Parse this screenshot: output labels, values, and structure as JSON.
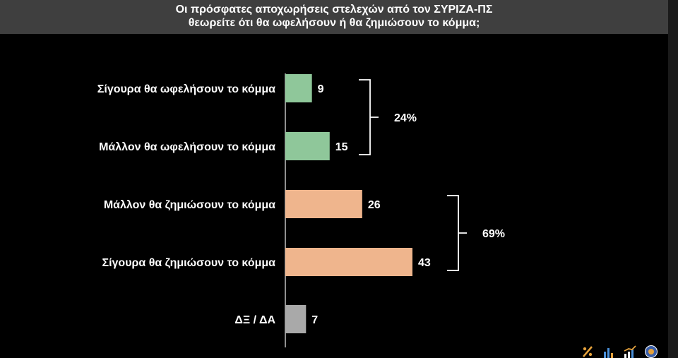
{
  "header": {
    "title_line1": "Οι πρόσφατες αποχωρήσεις στελεχών από τον ΣΥΡΙΖΑ-ΠΣ",
    "title_line2": "θεωρείτε ότι θα ωφελήσουν ή θα ζημιώσουν το κόμμα;"
  },
  "chart_data": {
    "type": "bar",
    "orientation": "horizontal",
    "categories": [
      "Σίγουρα θα ωφελήσουν το κόμμα",
      "Μάλλον θα ωφελήσουν το κόμμα",
      "Μάλλον θα ζημιώσουν το κόμμα",
      "Σίγουρα θα ζημιώσουν το κόμμα",
      "ΔΞ / ΔΑ"
    ],
    "values": [
      9,
      15,
      26,
      43,
      7
    ],
    "bar_colors": [
      "#8fc79a",
      "#8fc79a",
      "#efb58d",
      "#efb58d",
      "#a9a9a9"
    ],
    "groups": [
      {
        "label": "24%",
        "from": 0,
        "to": 1
      },
      {
        "label": "69%",
        "from": 2,
        "to": 3
      }
    ],
    "grid": false,
    "legend": "none"
  },
  "colors": {
    "background": "#000000",
    "title_bar": "#3f3f3f",
    "text": "#ffffff"
  },
  "logos": [
    "percent-logo-icon",
    "bar-chart-logo-icon",
    "trend-chart-logo-icon",
    "round-badge-logo-icon"
  ]
}
